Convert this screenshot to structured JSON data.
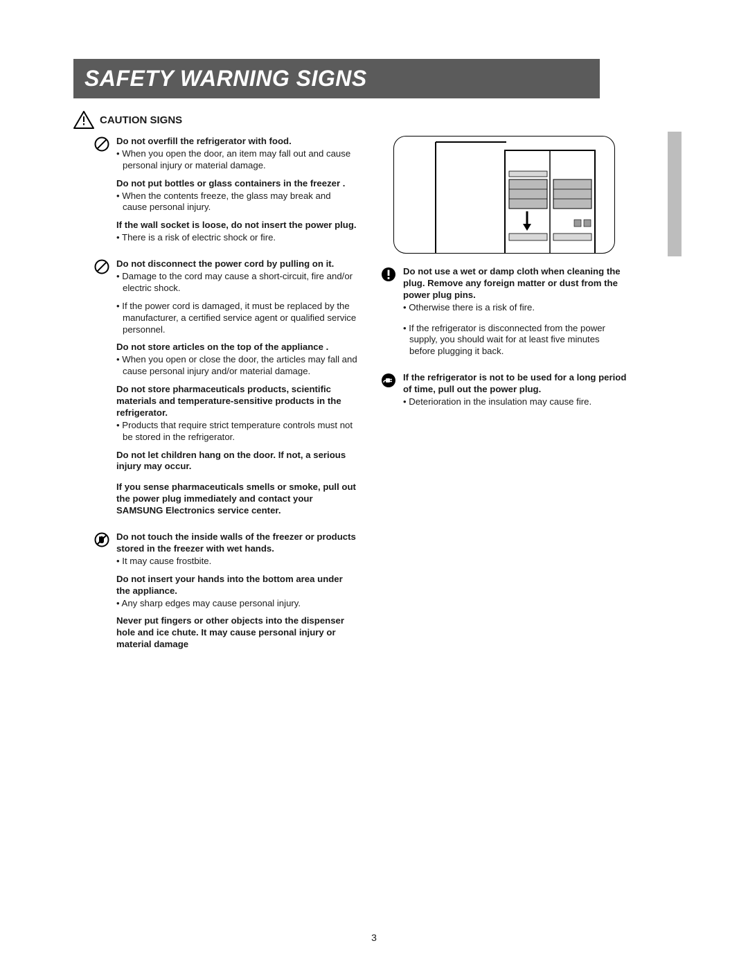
{
  "title": "SAFETY WARNING SIGNS",
  "section_title": "CAUTION SIGNS",
  "page_number": "3",
  "left": [
    {
      "icon": "prohibit",
      "items": [
        {
          "b": "Do not overfill the refrigerator with food."
        },
        {
          "t": "• When you open the door, an item may fall out and cause personal injury or material damage."
        },
        {
          "gap": "sm"
        },
        {
          "b": "Do not put bottles or glass containers in the freezer ."
        },
        {
          "t": "• When the contents freeze, the glass may break and cause personal injury."
        },
        {
          "gap": "sm"
        },
        {
          "b": "If the wall socket is loose, do not insert the power plug."
        },
        {
          "t": "• There is a risk of electric shock or fire."
        }
      ]
    },
    {
      "icon": "prohibit",
      "items": [
        {
          "b": "Do not disconnect the power cord by pulling on it."
        },
        {
          "t": "• Damage to the cord may cause a short-circuit, fire and/or electric shock."
        },
        {
          "gap": "sm"
        },
        {
          "t": "• If the power cord is damaged, it must be replaced by the manufacturer, a certified service agent or qualified service personnel."
        },
        {
          "gap": "sm"
        },
        {
          "b": "Do not store articles on the top of the appliance ."
        },
        {
          "t": "• When you open or close the door, the articles may fall and cause personal injury and/or material damage."
        },
        {
          "gap": "sm"
        },
        {
          "b": "Do not store pharmaceuticals products, scientific materials and temperature-sensitive products in the refrigerator."
        },
        {
          "t": "• Products that require strict temperature controls must not be stored in the refrigerator."
        },
        {
          "gap": "sm"
        },
        {
          "b": "Do not let children hang on the door. If not, a serious injury may occur."
        },
        {
          "gap": "md"
        },
        {
          "b": "If you sense pharmaceuticals smells or smoke, pull out the power plug immediately and contact your SAMSUNG Electronics service center."
        }
      ]
    },
    {
      "icon": "hand",
      "items": [
        {
          "b": "Do not touch the inside walls of the freezer or products stored in the freezer with wet hands."
        },
        {
          "t": "• It may cause frostbite."
        },
        {
          "gap": "sm"
        },
        {
          "b": "Do not insert your hands into the bottom area under the appliance."
        },
        {
          "t": "• Any sharp edges may cause personal injury."
        },
        {
          "gap": "sm"
        },
        {
          "b": "Never put fingers or other objects into the dispenser hole and ice chute.  It may cause personal injury or material damage"
        }
      ]
    }
  ],
  "right": [
    {
      "icon": "exclaim",
      "items": [
        {
          "b": "Do not use a wet or damp cloth when cleaning the plug. Remove any foreign matter or dust from the power plug pins."
        },
        {
          "t": "• Otherwise there is a risk of fire."
        },
        {
          "gap": "md"
        },
        {
          "t": "• If the refrigerator  is disconnected from the power supply, you should wait for at least five minutes before plugging it back."
        }
      ]
    },
    {
      "icon": "plug",
      "items": [
        {
          "b": "If the refrigerator  is not to be used for a long period of time, pull out the power plug."
        },
        {
          "t": "• Deterioration in the insulation may cause fire."
        }
      ]
    }
  ]
}
